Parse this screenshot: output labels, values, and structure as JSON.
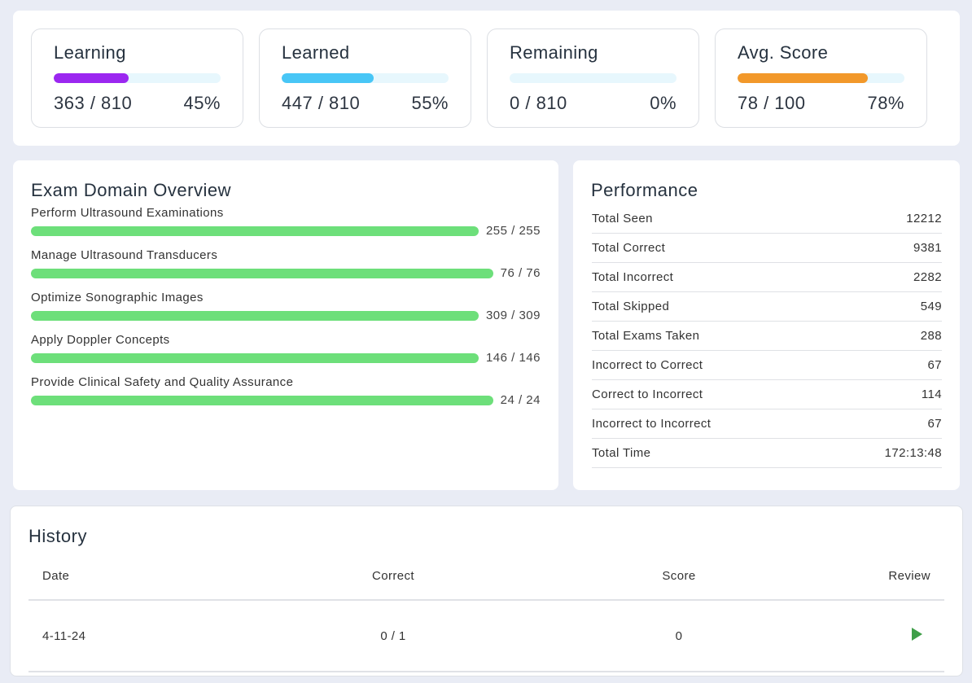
{
  "stats": [
    {
      "title": "Learning",
      "value": "363 / 810",
      "percent": "45%",
      "fill": 0.45,
      "color": "#9b27f0"
    },
    {
      "title": "Learned",
      "value": "447 / 810",
      "percent": "55%",
      "fill": 0.55,
      "color": "#48c6f6"
    },
    {
      "title": "Remaining",
      "value": "0 / 810",
      "percent": "0%",
      "fill": 0,
      "color": "#48c6f6"
    },
    {
      "title": "Avg. Score",
      "value": "78 / 100",
      "percent": "78%",
      "fill": 0.78,
      "color": "#f2982a"
    }
  ],
  "domain": {
    "title": "Exam Domain Overview",
    "items": [
      {
        "label": "Perform Ultrasound Examinations",
        "value": "255 / 255"
      },
      {
        "label": "Manage Ultrasound Transducers",
        "value": "76 / 76"
      },
      {
        "label": "Optimize Sonographic Images",
        "value": "309 / 309"
      },
      {
        "label": "Apply Doppler Concepts",
        "value": "146 / 146"
      },
      {
        "label": "Provide Clinical Safety and Quality Assurance",
        "value": "24 / 24"
      }
    ]
  },
  "performance": {
    "title": "Performance",
    "rows": [
      {
        "label": "Total Seen",
        "value": "12212"
      },
      {
        "label": "Total Correct",
        "value": "9381"
      },
      {
        "label": "Total Incorrect",
        "value": "2282"
      },
      {
        "label": "Total Skipped",
        "value": "549"
      },
      {
        "label": "Total Exams Taken",
        "value": "288"
      },
      {
        "label": "Incorrect to Correct",
        "value": "67"
      },
      {
        "label": "Correct to Incorrect",
        "value": "114"
      },
      {
        "label": "Incorrect to Incorrect",
        "value": "67"
      },
      {
        "label": "Total Time",
        "value": "172:13:48"
      }
    ]
  },
  "history": {
    "title": "History",
    "columns": [
      "Date",
      "Correct",
      "Score",
      "Review"
    ],
    "rows": [
      {
        "date": "4-11-24",
        "correct": "0 / 1",
        "score": "0",
        "review_icon": "play-icon",
        "review_color": "#3f9e49"
      }
    ]
  }
}
